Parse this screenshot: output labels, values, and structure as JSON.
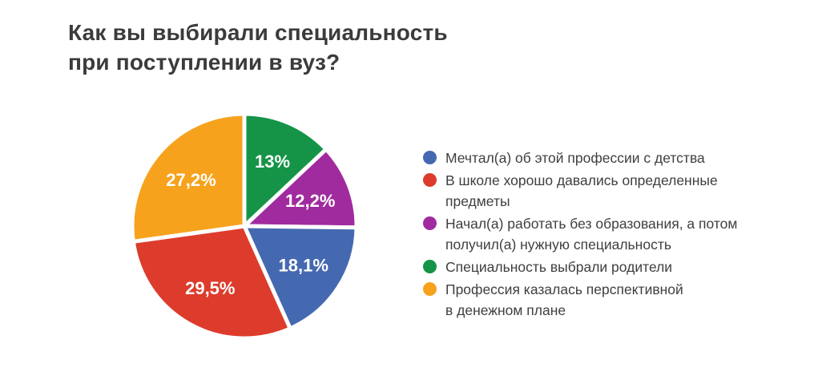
{
  "page": {
    "background_color": "#ffffff"
  },
  "title": {
    "lines": [
      "Как вы выбирали специальность",
      "при поступлении в вуз?"
    ],
    "color": "#3b3b3b"
  },
  "chart_data": {
    "type": "pie",
    "title": "Как вы выбирали специальность при поступлении в вуз?",
    "legend_position": "right",
    "total_percent": 100,
    "series": [
      {
        "name": "Мечтал(а) об этой профессии с детства",
        "value": 18.1,
        "percent_label": "18,1%",
        "color": "#4569b1"
      },
      {
        "name": "В школе хорошо давались определенные предметы",
        "value": 29.5,
        "percent_label": "29,5%",
        "color": "#dd3c2c"
      },
      {
        "name": "Начал(а) работать без образования, а потом получил(а) нужную специальность",
        "value": 12.2,
        "percent_label": "12,2%",
        "color": "#a02b9e"
      },
      {
        "name": "Специальность выбрали родители",
        "value": 13,
        "percent_label": "13%",
        "color": "#159447"
      },
      {
        "name": "Профессия казалась перспективной в денежном плане",
        "value": 27.2,
        "percent_label": "27,2%",
        "color": "#f7a21d"
      }
    ],
    "pie": {
      "start_angle_deg_from_top": 0,
      "direction": "clockwise",
      "clockwise_order_series_indexes": [
        3,
        2,
        0,
        1,
        4
      ],
      "slice_gap_color": "#ffffff",
      "slice_label_color": "#ffffff",
      "label_radius_fraction": 0.63
    }
  },
  "legend": {
    "text_color": "#3f3f3f",
    "items": [
      {
        "series_index": 0,
        "lines": [
          "Мечтал(а) об этой профессии с детства"
        ]
      },
      {
        "series_index": 1,
        "lines": [
          "В школе хорошо давались определенные",
          "предметы"
        ]
      },
      {
        "series_index": 2,
        "lines": [
          "Начал(а) работать без образования, а потом",
          "получил(а) нужную специальность"
        ]
      },
      {
        "series_index": 3,
        "lines": [
          "Специальность выбрали родители"
        ]
      },
      {
        "series_index": 4,
        "lines": [
          "Профессия казалась перспективной",
          "в денежном плане"
        ]
      }
    ]
  }
}
